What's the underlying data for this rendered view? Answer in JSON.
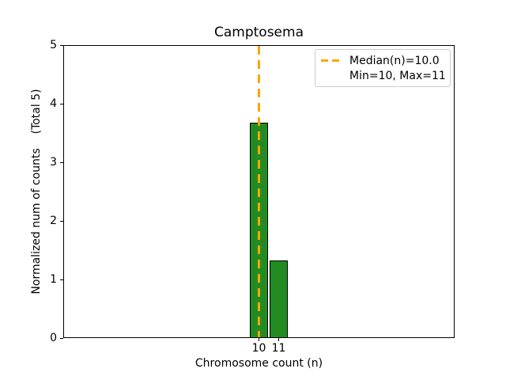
{
  "chart_data": {
    "type": "bar",
    "title": "Camptosema",
    "xlabel": "Chromosome count (n)",
    "ylabel": "Normalized num of counts    (Total 5)",
    "categories": [
      10,
      11
    ],
    "values": [
      3.67,
      1.33
    ],
    "xticks": [
      "10",
      "11"
    ],
    "yticks": [
      "0",
      "1",
      "2",
      "3",
      "4",
      "5"
    ],
    "xlim": [
      0.1,
      19.9
    ],
    "ylim": [
      0,
      5
    ],
    "grid": false,
    "bar_color": "#228B22",
    "bar_edge_color": "#000000",
    "bar_width": 0.9,
    "median_line": {
      "x": 10.0,
      "color": "#FFA500",
      "style": "dashed"
    },
    "legend": {
      "position": "upper right",
      "entries": [
        {
          "label": "Median(n)=10.0",
          "marker": "dashed-line",
          "color": "#FFA500"
        },
        {
          "label": "Min=10, Max=11",
          "marker": "none",
          "color": "none"
        }
      ]
    },
    "stats": {
      "median": 10.0,
      "min": 10,
      "max": 11,
      "total": 5
    }
  }
}
